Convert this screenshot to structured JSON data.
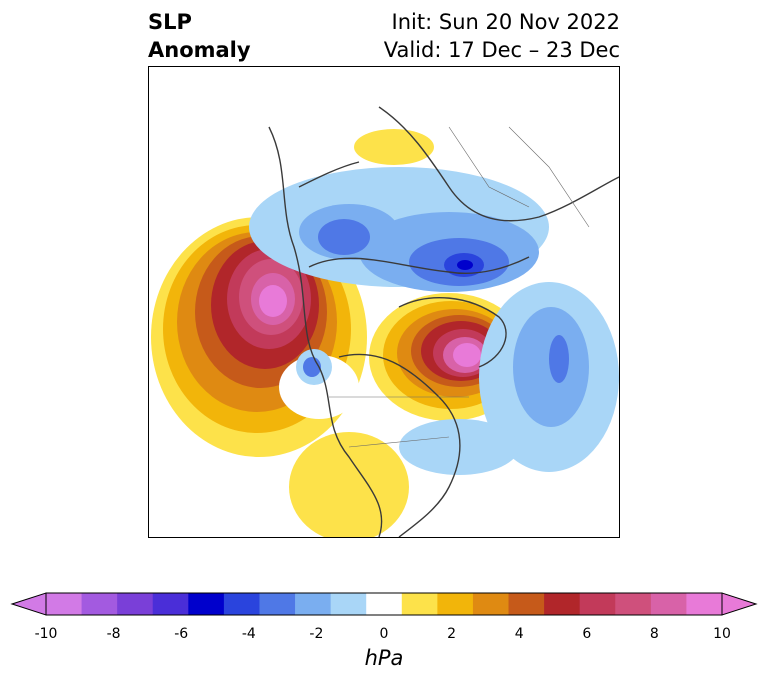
{
  "title": {
    "left_line1": "SLP",
    "left_line2": "Anomaly",
    "right_line1": "Init: Sun 20 Nov 2022",
    "right_line2": "Valid: 17 Dec – 23 Dec"
  },
  "colorbar": {
    "unit_label": "hPa",
    "ticks": [
      "-10",
      "-8",
      "-6",
      "-4",
      "-2",
      "0",
      "2",
      "4",
      "6",
      "8",
      "10"
    ],
    "colors": [
      "#d27ae6",
      "#a35ae0",
      "#7a3fd8",
      "#4a2ed8",
      "#0000cc",
      "#2a44dd",
      "#4f78e6",
      "#7aaef0",
      "#a9d6f7",
      "#ffffff",
      "#fde24a",
      "#f2b50a",
      "#df8a12",
      "#c65a1a",
      "#b1262a",
      "#c23a5a",
      "#cf507c",
      "#d862a8",
      "#e87ad8"
    ],
    "under_color": "#d27ae6",
    "over_color": "#e87ad8"
  }
}
